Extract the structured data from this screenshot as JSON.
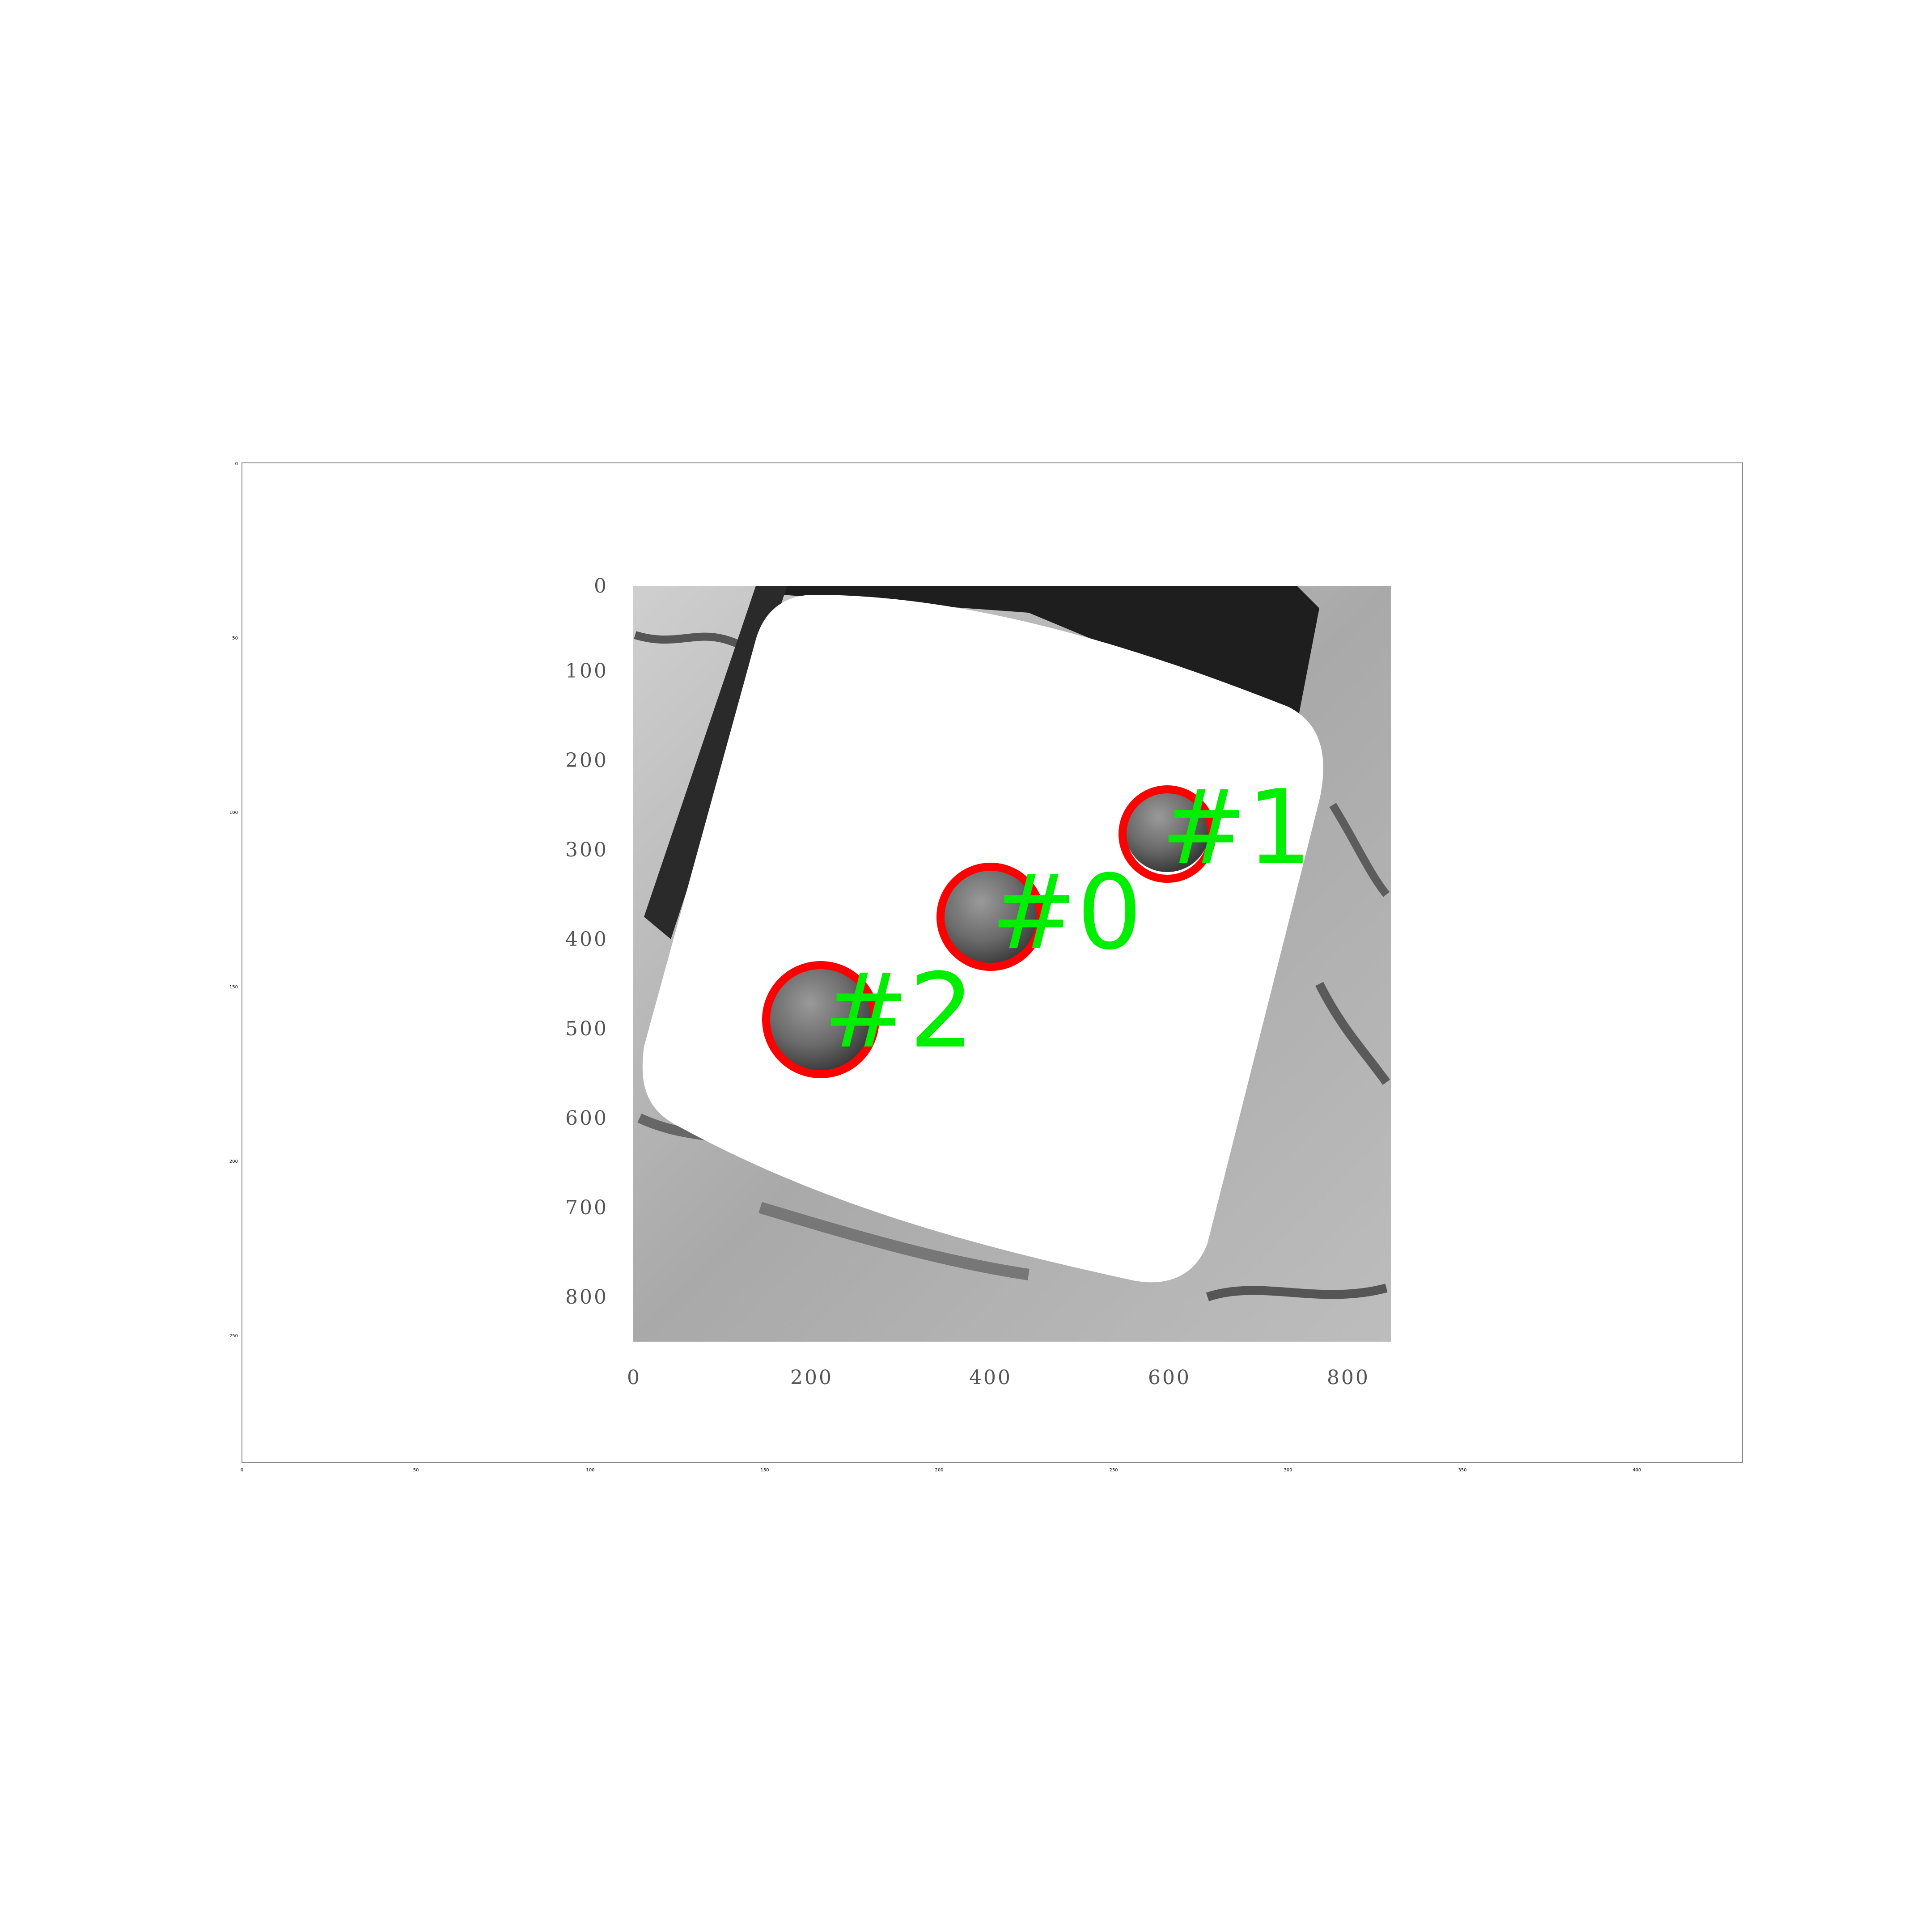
{
  "axes": {
    "x_ticks": [
      "0",
      "50",
      "100",
      "150",
      "200",
      "250",
      "300",
      "350",
      "400"
    ],
    "y_ticks": [
      "0",
      "50",
      "100",
      "150",
      "200",
      "250"
    ]
  },
  "inner_image": {
    "left_ticks": [
      "0",
      "100",
      "200",
      "300",
      "400",
      "500",
      "600",
      "700",
      "800"
    ],
    "bottom_ticks": [
      "0",
      "200",
      "400",
      "600",
      "800"
    ]
  },
  "detections": [
    {
      "label": "#0"
    },
    {
      "label": "#1"
    },
    {
      "label": "#2"
    }
  ],
  "colors": {
    "circle": "#ff0000",
    "label": "#00ee00",
    "frame": "#888888"
  }
}
